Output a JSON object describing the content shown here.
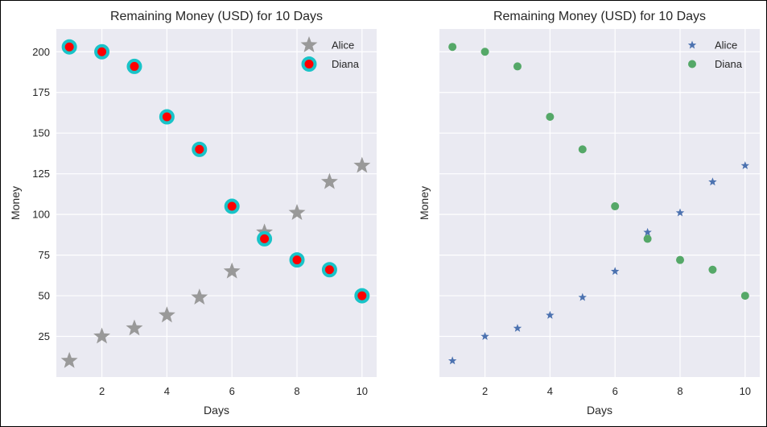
{
  "chart_data": [
    {
      "type": "scatter",
      "title": "Remaining Money (USD) for 10 Days",
      "xlabel": "Days",
      "ylabel": "Money",
      "xlim": [
        0.6,
        10.45
      ],
      "ylim": [
        0,
        214
      ],
      "xticks": [
        2,
        4,
        6,
        8,
        10
      ],
      "yticks": [
        25,
        50,
        75,
        100,
        125,
        150,
        175,
        200
      ],
      "show_yticklabels": true,
      "grid": true,
      "background": "#eaeaf2",
      "legend_position": "top-right",
      "series": [
        {
          "name": "Alice",
          "marker": "star-large",
          "color": "#999999",
          "x": [
            1,
            2,
            3,
            4,
            5,
            6,
            7,
            8,
            9,
            10
          ],
          "y": [
            10,
            25,
            30,
            38,
            49,
            65,
            89,
            101,
            120,
            130
          ]
        },
        {
          "name": "Diana",
          "marker": "circle-ring",
          "color": "#ff0000",
          "edge_color": "#19c3c8",
          "x": [
            1,
            2,
            3,
            4,
            5,
            6,
            7,
            8,
            9,
            10
          ],
          "y": [
            203,
            200,
            191,
            160,
            140,
            105,
            85,
            72,
            66,
            50
          ]
        }
      ]
    },
    {
      "type": "scatter",
      "title": "Remaining Money (USD) for 10 Days",
      "xlabel": "Days",
      "ylabel": "Money",
      "xlim": [
        0.6,
        10.45
      ],
      "ylim": [
        0,
        214
      ],
      "xticks": [
        2,
        4,
        6,
        8,
        10
      ],
      "yticks": [
        25,
        50,
        75,
        100,
        125,
        150,
        175,
        200
      ],
      "show_yticklabels": false,
      "grid": true,
      "background": "#eaeaf2",
      "legend_position": "top-right",
      "series": [
        {
          "name": "Alice",
          "marker": "star-small",
          "color": "#4c72b0",
          "x": [
            1,
            2,
            3,
            4,
            5,
            6,
            7,
            8,
            9,
            10
          ],
          "y": [
            10,
            25,
            30,
            38,
            49,
            65,
            89,
            101,
            120,
            130
          ]
        },
        {
          "name": "Diana",
          "marker": "circle",
          "color": "#55a868",
          "x": [
            1,
            2,
            3,
            4,
            5,
            6,
            7,
            8,
            9,
            10
          ],
          "y": [
            203,
            200,
            191,
            160,
            140,
            105,
            85,
            72,
            66,
            50
          ]
        }
      ]
    }
  ]
}
